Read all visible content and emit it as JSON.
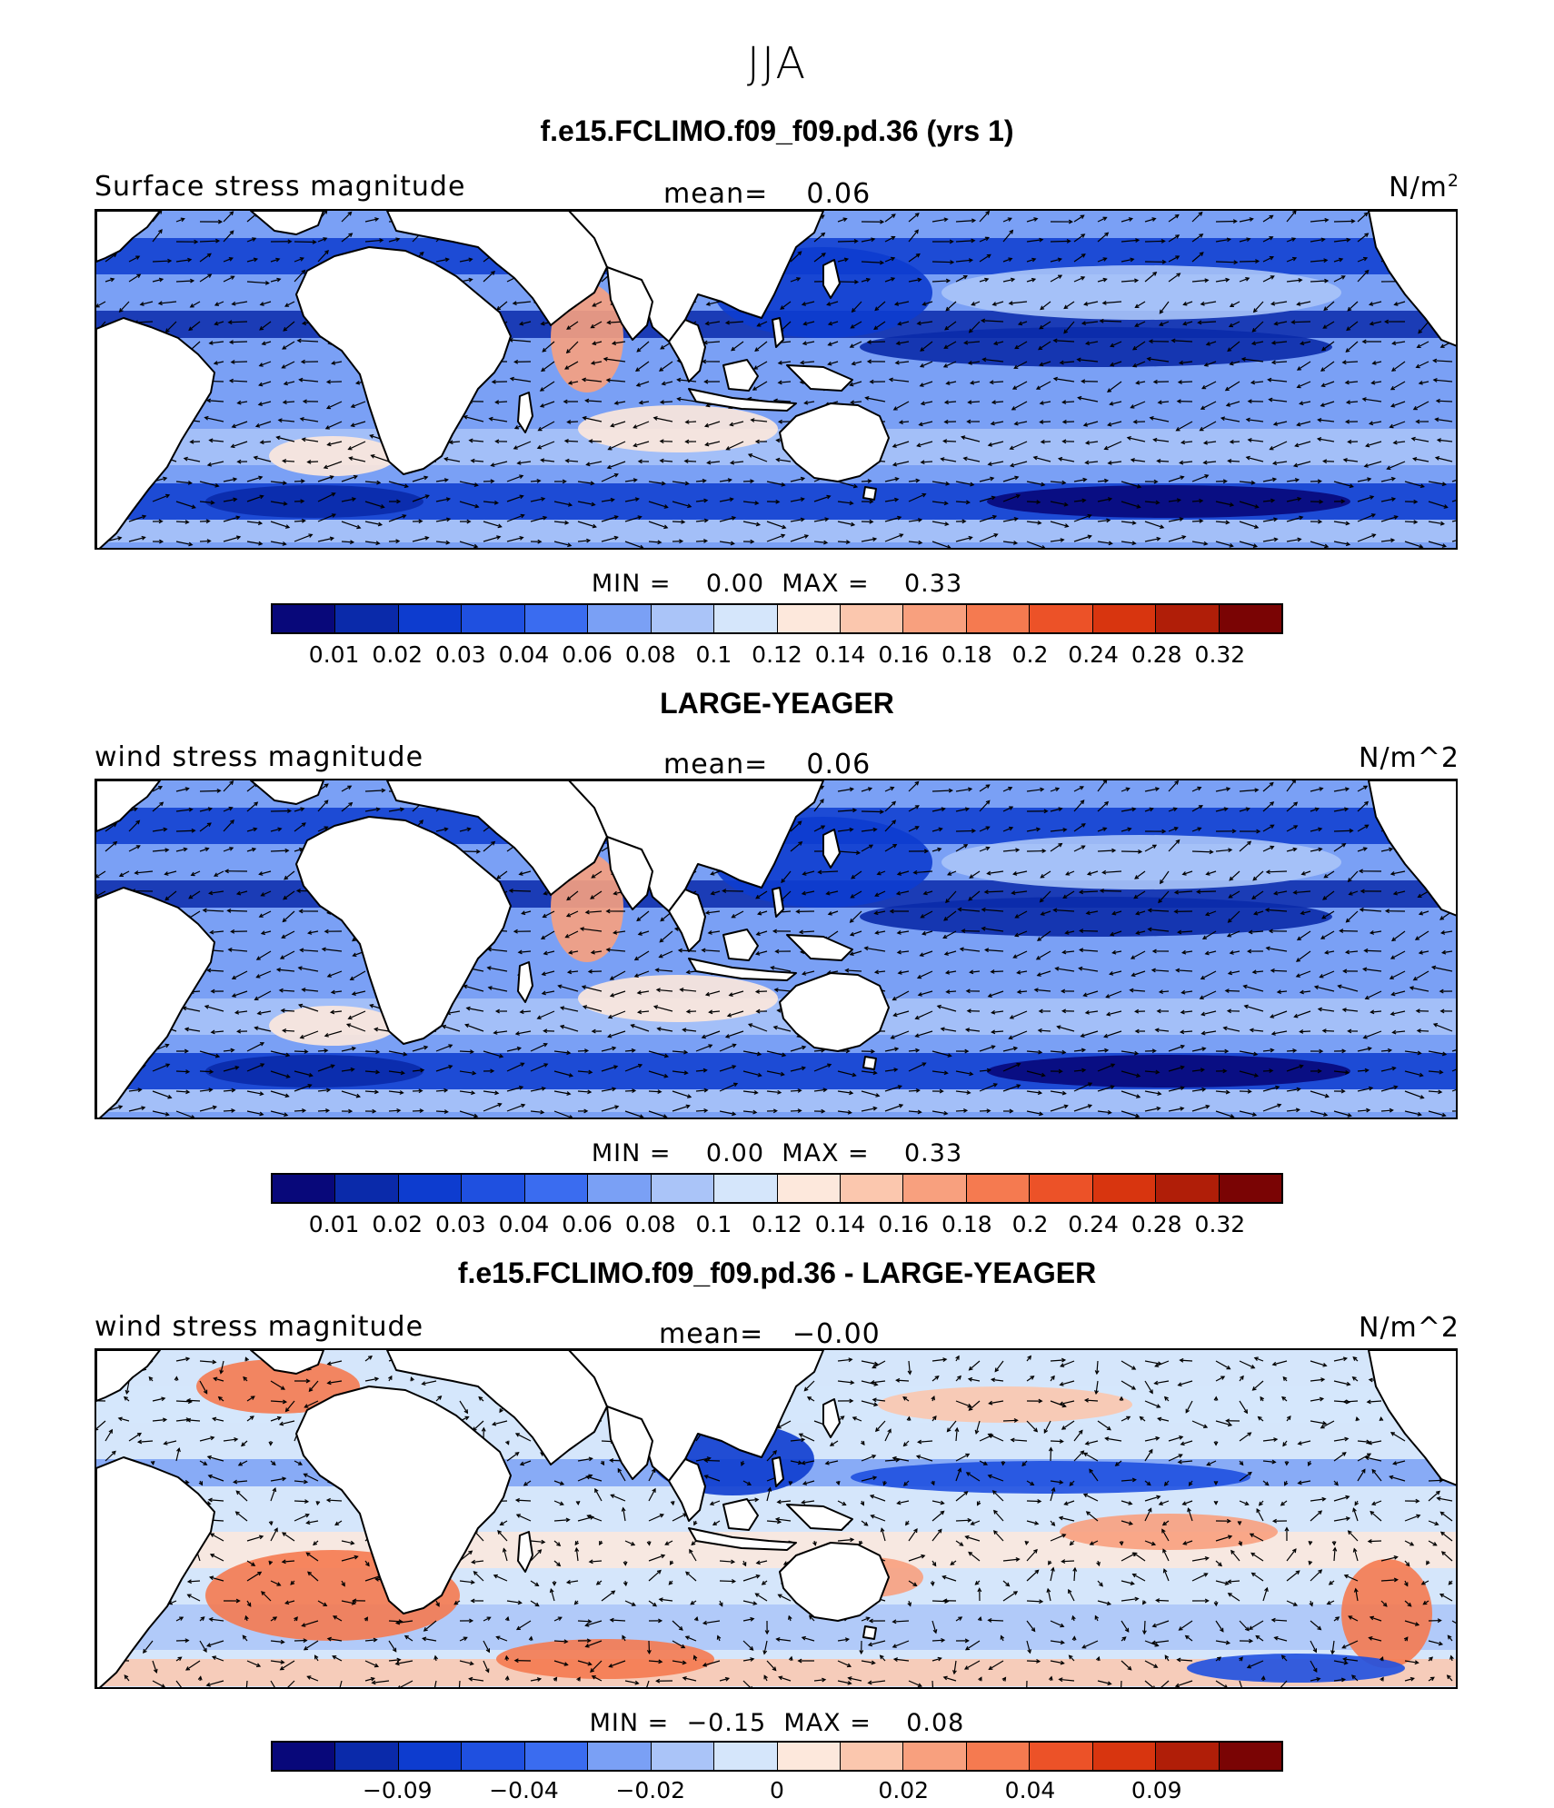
{
  "season": "JJA",
  "palette": [
    "#08087a",
    "#0a2aaa",
    "#0d3ccf",
    "#1f50e0",
    "#3a6cf0",
    "#7aa0f5",
    "#aac4f8",
    "#d5e6fb",
    "#fde8dc",
    "#fbc7ae",
    "#f8a07e",
    "#f57a50",
    "#ec5228",
    "#d8350f",
    "#b01e08",
    "#7a0404"
  ],
  "panels": [
    {
      "title": "f.e15.FCLIMO.f09_f09.pd.36 (yrs 1)",
      "field_label": "Surface stress magnitude",
      "mean_label": "mean=",
      "mean_value": "0.06",
      "units": "N/m",
      "units_sup": "2",
      "min_label": "MIN =",
      "min_value": "0.00",
      "max_label": "MAX =",
      "max_value": "0.33",
      "colorbar_labels": [
        "0.01",
        "0.02",
        "0.03",
        "0.04",
        "0.06",
        "0.08",
        "0.1",
        "0.12",
        "0.14",
        "0.16",
        "0.18",
        "0.2",
        "0.24",
        "0.28",
        "0.32"
      ],
      "field_type": "magnitude"
    },
    {
      "title": "LARGE-YEAGER",
      "field_label": "wind stress magnitude",
      "mean_label": "mean=",
      "mean_value": "0.06",
      "units": "N/m^2",
      "units_sup": "",
      "min_label": "MIN =",
      "min_value": "0.00",
      "max_label": "MAX =",
      "max_value": "0.33",
      "colorbar_labels": [
        "0.01",
        "0.02",
        "0.03",
        "0.04",
        "0.06",
        "0.08",
        "0.1",
        "0.12",
        "0.14",
        "0.16",
        "0.18",
        "0.2",
        "0.24",
        "0.28",
        "0.32"
      ],
      "field_type": "magnitude"
    },
    {
      "title": "f.e15.FCLIMO.f09_f09.pd.36 - LARGE-YEAGER",
      "field_label": "wind stress magnitude",
      "mean_label": "mean=",
      "mean_value": "−0.00",
      "units": "N/m^2",
      "units_sup": "",
      "min_label": "MIN =",
      "min_value": "−0.15",
      "max_label": "MAX =",
      "max_value": "0.08",
      "colorbar_labels": [
        "−0.09",
        "−0.04",
        "−0.02",
        "0",
        "0.02",
        "0.04",
        "0.09"
      ],
      "field_type": "difference"
    }
  ]
}
